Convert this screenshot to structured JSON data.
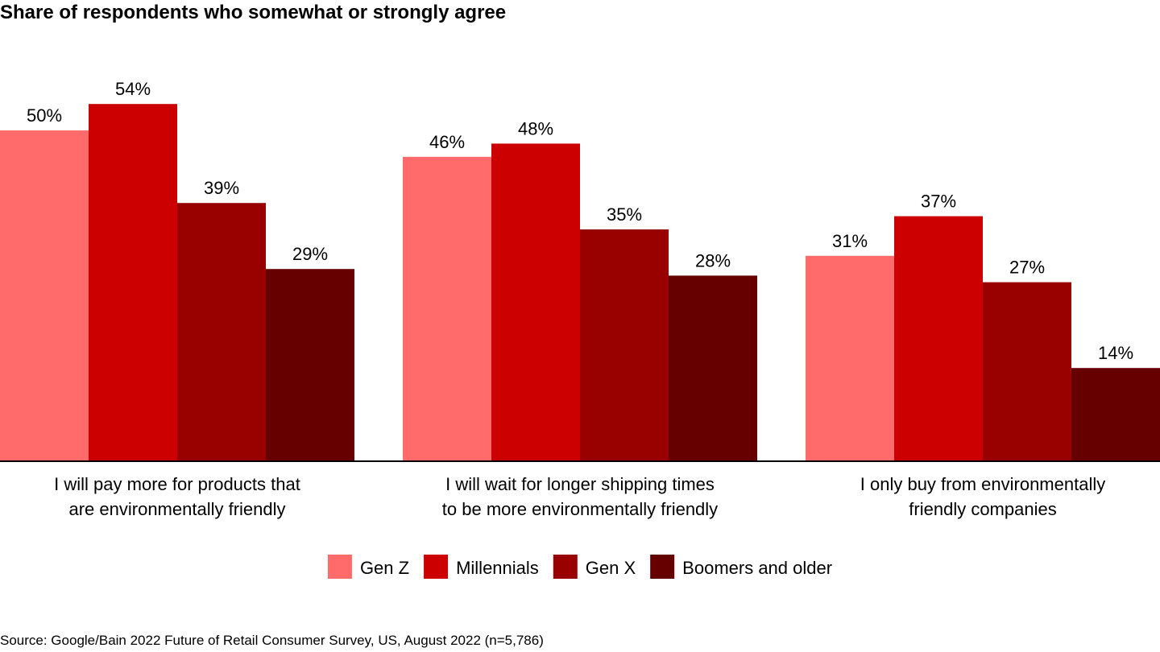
{
  "chart_data": {
    "type": "bar",
    "title": "Share of respondents who somewhat or strongly agree",
    "categories": [
      [
        "I will pay more for products that",
        "are environmentally friendly"
      ],
      [
        "I will wait for longer shipping times",
        "to be more environmentally friendly"
      ],
      [
        "I only buy from environmentally",
        "friendly companies"
      ]
    ],
    "series": [
      {
        "name": "Gen Z",
        "color": "#ff6b6b",
        "values": [
          50,
          46,
          31
        ]
      },
      {
        "name": "Millennials",
        "color": "#cc0000",
        "values": [
          54,
          48,
          37
        ]
      },
      {
        "name": "Gen X",
        "color": "#990000",
        "values": [
          39,
          35,
          27
        ]
      },
      {
        "name": "Boomers and older",
        "color": "#660000",
        "values": [
          29,
          28,
          14
        ]
      }
    ],
    "value_suffix": "%",
    "ylim": [
      0,
      100
    ],
    "grid": false,
    "legend_position": "bottom-center",
    "source": "Source: Google/Bain 2022 Future of Retail Consumer Survey, US, August 2022 (n=5,786)"
  }
}
